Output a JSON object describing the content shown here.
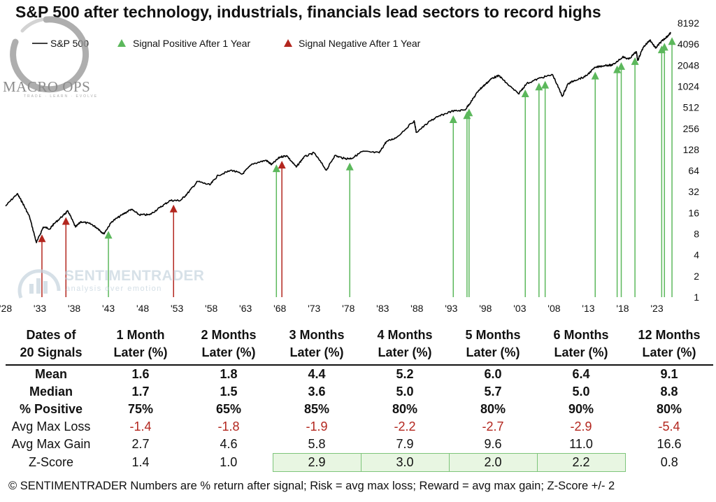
{
  "title": "S&P 500 after technology, industrials, financials lead sectors to record highs",
  "legend": {
    "line_label": "S&P 500",
    "positive_label": "Signal Positive After 1 Year",
    "negative_label": "Signal Negative After 1 Year"
  },
  "colors": {
    "line": "#000000",
    "positive": "#5cb85c",
    "negative": "#b3261e",
    "negative_text": "#b3261e",
    "highlight_bg": "#e8f6e2",
    "highlight_border": "#7dc47a"
  },
  "watermarks": {
    "macro_ops": "MACRO OPS",
    "macro_ops_tag": "TRADE · LEARN · EVOLVE",
    "sentimentrader": "SENTIMENTRADER",
    "sentimentrader_tag": "analysis over emotion"
  },
  "chart_data": {
    "type": "line",
    "title": "S&P 500 after technology, industrials, financials lead sectors to record highs",
    "y_scale": "log2",
    "ylim": [
      1,
      8192
    ],
    "xlim": [
      1928,
      2025.5
    ],
    "y_ticks": [
      1,
      2,
      4,
      8,
      16,
      32,
      64,
      128,
      256,
      512,
      1024,
      2048,
      4096,
      8192
    ],
    "x_ticks": [
      1928,
      1933,
      1938,
      1943,
      1948,
      1953,
      1958,
      1963,
      1968,
      1973,
      1978,
      1983,
      1988,
      1993,
      1998,
      2003,
      2008,
      2013,
      2018,
      2023
    ],
    "x_tick_labels": [
      "'28",
      "'33",
      "'38",
      "'43",
      "'48",
      "'53",
      "'58",
      "'63",
      "'68",
      "'73",
      "'78",
      "'83",
      "'88",
      "'93",
      "'98",
      "'03",
      "'08",
      "'13",
      "'18",
      "'23"
    ],
    "legend_placement": "top-left",
    "series": [
      {
        "name": "S&P 500",
        "x": [
          1928.0,
          1929.7,
          1930.5,
          1931.5,
          1932.5,
          1933.5,
          1934.5,
          1935.0,
          1936.5,
          1937.1,
          1938.2,
          1939.0,
          1940.5,
          1941.5,
          1942.3,
          1943.5,
          1945.0,
          1946.3,
          1947.5,
          1949.0,
          1950.5,
          1952.0,
          1953.5,
          1954.5,
          1956.0,
          1957.8,
          1959.0,
          1961.0,
          1962.5,
          1964.0,
          1966.0,
          1966.8,
          1968.0,
          1969.0,
          1970.4,
          1971.5,
          1973.0,
          1974.8,
          1976.0,
          1977.5,
          1978.5,
          1980.0,
          1982.5,
          1983.5,
          1985.0,
          1987.6,
          1987.9,
          1990.0,
          1991.0,
          1993.0,
          1995.0,
          1996.0,
          1997.0,
          1998.0,
          1999.0,
          2000.0,
          2001.0,
          2002.8,
          2004.0,
          2006.0,
          2007.8,
          2009.2,
          2010.0,
          2011.0,
          2012.5,
          2014.0,
          2015.5,
          2016.5,
          2018.0,
          2018.9,
          2020.0,
          2020.2,
          2021.0,
          2022.0,
          2022.8,
          2023.5,
          2024.0,
          2024.6,
          2025.0
        ],
        "values": [
          20,
          30,
          22,
          14,
          6,
          10,
          9.5,
          11,
          15,
          17,
          10,
          12,
          11,
          9.5,
          8,
          12,
          15,
          18,
          15,
          15,
          19,
          24,
          24,
          30,
          45,
          40,
          55,
          65,
          57,
          80,
          90,
          78,
          100,
          105,
          72,
          100,
          115,
          65,
          105,
          95,
          96,
          120,
          115,
          165,
          190,
          330,
          225,
          330,
          375,
          450,
          470,
          640,
          900,
          1100,
          1350,
          1450,
          1150,
          800,
          1120,
          1350,
          1500,
          735,
          1100,
          1250,
          1400,
          1900,
          2050,
          2050,
          2700,
          2500,
          3200,
          2400,
          3700,
          4700,
          3600,
          4300,
          4800,
          5400,
          5900
        ]
      }
    ],
    "signals": [
      {
        "year": 1933.3,
        "type": "negative"
      },
      {
        "year": 1936.8,
        "type": "negative"
      },
      {
        "year": 1943.0,
        "type": "positive"
      },
      {
        "year": 1952.5,
        "type": "negative"
      },
      {
        "year": 1967.5,
        "type": "positive"
      },
      {
        "year": 1968.3,
        "type": "negative"
      },
      {
        "year": 1978.2,
        "type": "positive"
      },
      {
        "year": 1993.3,
        "type": "positive"
      },
      {
        "year": 1995.3,
        "type": "positive"
      },
      {
        "year": 1995.6,
        "type": "positive"
      },
      {
        "year": 2003.8,
        "type": "positive"
      },
      {
        "year": 2005.8,
        "type": "positive"
      },
      {
        "year": 2006.7,
        "type": "positive"
      },
      {
        "year": 2014.0,
        "type": "positive"
      },
      {
        "year": 2017.2,
        "type": "positive"
      },
      {
        "year": 2017.8,
        "type": "positive"
      },
      {
        "year": 2019.8,
        "type": "positive"
      },
      {
        "year": 2023.7,
        "type": "positive"
      },
      {
        "year": 2024.1,
        "type": "positive"
      },
      {
        "year": 2025.2,
        "type": "positive"
      }
    ]
  },
  "stats_table": {
    "header": [
      [
        "Dates of",
        "20 Signals"
      ],
      [
        "1 Month",
        "Later (%)"
      ],
      [
        "2 Months",
        "Later (%)"
      ],
      [
        "3 Months",
        "Later (%)"
      ],
      [
        "4 Months",
        "Later (%)"
      ],
      [
        "5 Months",
        "Later (%)"
      ],
      [
        "6 Months",
        "Later (%)"
      ],
      [
        "12 Months",
        "Later (%)"
      ]
    ],
    "rows": [
      {
        "label": "Mean",
        "style": "bold",
        "values": [
          "1.6",
          "1.8",
          "4.4",
          "5.2",
          "6.0",
          "6.4",
          "9.1"
        ]
      },
      {
        "label": "Median",
        "style": "bold",
        "values": [
          "1.7",
          "1.5",
          "3.6",
          "5.0",
          "5.7",
          "5.0",
          "8.8"
        ]
      },
      {
        "label": "% Positive",
        "style": "bold",
        "values": [
          "75%",
          "65%",
          "85%",
          "80%",
          "80%",
          "90%",
          "80%"
        ]
      },
      {
        "label": "Avg Max Loss",
        "style": "neg",
        "values": [
          "-1.4",
          "-1.8",
          "-1.9",
          "-2.2",
          "-2.7",
          "-2.9",
          "-5.4"
        ]
      },
      {
        "label": "Avg Max Gain",
        "style": "normal",
        "values": [
          "2.7",
          "4.6",
          "5.8",
          "7.9",
          "9.6",
          "11.0",
          "16.6"
        ]
      },
      {
        "label": "Z-Score",
        "style": "normal",
        "values": [
          "1.4",
          "1.0",
          "2.9",
          "3.0",
          "2.0",
          "2.2",
          "0.8"
        ],
        "highlighted": [
          false,
          false,
          true,
          true,
          true,
          true,
          false
        ]
      }
    ]
  },
  "footer": "© SENTIMENTRADER  Numbers are % return after signal; Risk = avg max loss; Reward = avg max gain; Z-Score +/- 2"
}
